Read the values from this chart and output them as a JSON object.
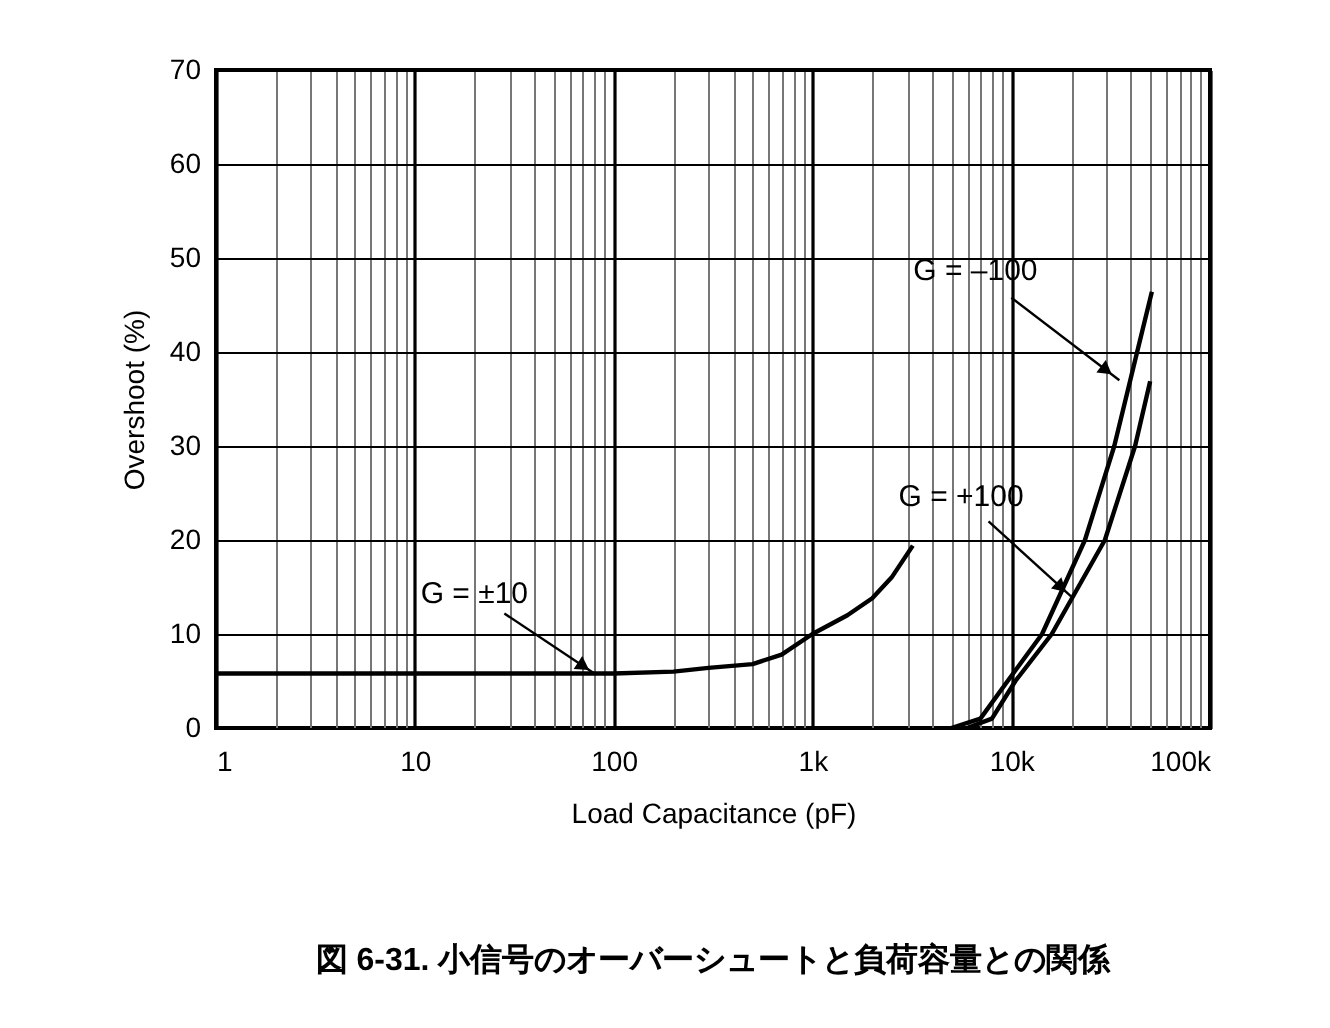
{
  "chart_data": {
    "type": "line",
    "title": "図 6-31. 小信号のオーバーシュートと負荷容量との関係",
    "xlabel": "Load Capacitance (pF)",
    "ylabel": "Overshoot (%)",
    "log": "x",
    "xlim": [
      1,
      100000
    ],
    "ylim": [
      0,
      70
    ],
    "xticks": [
      {
        "value": 1,
        "label": "1"
      },
      {
        "value": 2,
        "label": null
      },
      {
        "value": 3,
        "label": null
      },
      {
        "value": 4,
        "label": null
      },
      {
        "value": 5,
        "label": null
      },
      {
        "value": 6,
        "label": null
      },
      {
        "value": 7,
        "label": null
      },
      {
        "value": 8,
        "label": null
      },
      {
        "value": 9,
        "label": null
      },
      {
        "value": 10,
        "label": "10"
      },
      {
        "value": 20,
        "label": null
      },
      {
        "value": 30,
        "label": null
      },
      {
        "value": 40,
        "label": null
      },
      {
        "value": 50,
        "label": null
      },
      {
        "value": 60,
        "label": null
      },
      {
        "value": 70,
        "label": null
      },
      {
        "value": 80,
        "label": null
      },
      {
        "value": 90,
        "label": null
      },
      {
        "value": 100,
        "label": "100"
      },
      {
        "value": 200,
        "label": null
      },
      {
        "value": 300,
        "label": null
      },
      {
        "value": 400,
        "label": null
      },
      {
        "value": 500,
        "label": null
      },
      {
        "value": 600,
        "label": null
      },
      {
        "value": 700,
        "label": null
      },
      {
        "value": 800,
        "label": null
      },
      {
        "value": 900,
        "label": null
      },
      {
        "value": 1000,
        "label": "1k"
      },
      {
        "value": 2000,
        "label": null
      },
      {
        "value": 3000,
        "label": null
      },
      {
        "value": 4000,
        "label": null
      },
      {
        "value": 5000,
        "label": null
      },
      {
        "value": 6000,
        "label": null
      },
      {
        "value": 7000,
        "label": null
      },
      {
        "value": 8000,
        "label": null
      },
      {
        "value": 9000,
        "label": null
      },
      {
        "value": 10000,
        "label": "10k"
      },
      {
        "value": 20000,
        "label": null
      },
      {
        "value": 30000,
        "label": null
      },
      {
        "value": 40000,
        "label": null
      },
      {
        "value": 50000,
        "label": null
      },
      {
        "value": 60000,
        "label": null
      },
      {
        "value": 70000,
        "label": null
      },
      {
        "value": 80000,
        "label": null
      },
      {
        "value": 90000,
        "label": null
      },
      {
        "value": 100000,
        "label": "100k"
      }
    ],
    "yticks": [
      0,
      10,
      20,
      30,
      40,
      50,
      60,
      70
    ],
    "grid": true,
    "line_style": "solid",
    "marker": "none",
    "series": [
      {
        "color": "#000000",
        "x": [
          1,
          10,
          30,
          100,
          200,
          300,
          500,
          700,
          1000,
          1500,
          2000,
          2500,
          3200
        ],
        "values": [
          5.8,
          5.8,
          5.8,
          5.8,
          6.0,
          6.4,
          6.8,
          7.8,
          10,
          12,
          13.8,
          16,
          19.4
        ]
      },
      {
        "color": "#000000",
        "x": [
          5000,
          7000,
          9600,
          14300,
          23500,
          33000,
          43000,
          51000
        ],
        "values": [
          0,
          1,
          5,
          10,
          20,
          30,
          40,
          46.4
        ]
      },
      {
        "color": "#000000",
        "x": [
          6000,
          8000,
          10500,
          16000,
          29600,
          42000,
          50000
        ],
        "values": [
          0,
          1,
          5,
          10,
          20,
          30,
          36.9
        ]
      }
    ],
    "annotations": [
      {
        "text": "G = ±10",
        "x": 80,
        "y": 5.8
      },
      {
        "text": "G = –100",
        "x": 35000,
        "y": 37
      },
      {
        "text": "G = +100",
        "x": 20000,
        "y": 14
      }
    ]
  }
}
